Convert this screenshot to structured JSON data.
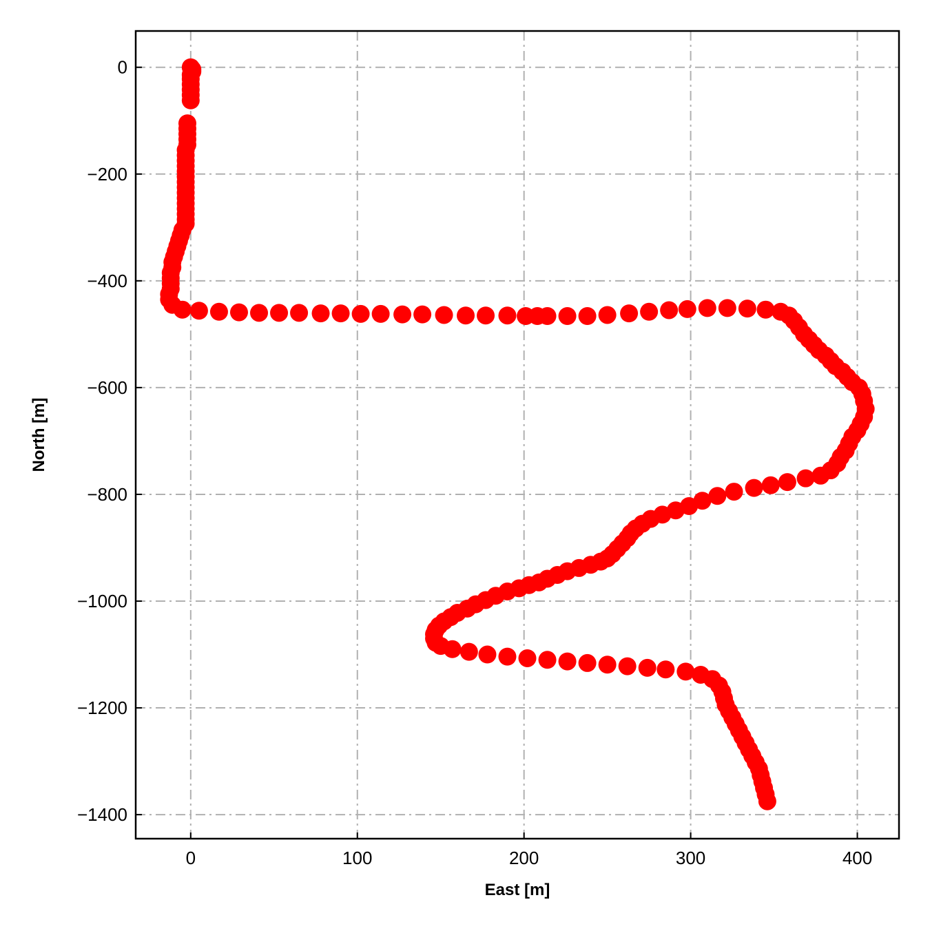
{
  "chart_data": {
    "type": "scatter",
    "title": "",
    "xlabel": "East [m]",
    "ylabel": "North [m]",
    "xlim": [
      -33,
      425
    ],
    "ylim": [
      -1445,
      68
    ],
    "xticks": [
      0,
      100,
      200,
      300,
      400
    ],
    "yticks": [
      0,
      -200,
      -400,
      -600,
      -800,
      -1000,
      -1200,
      -1400
    ],
    "xtick_labels": [
      "0",
      "100",
      "200",
      "300",
      "400"
    ],
    "ytick_labels": [
      "0",
      "−200",
      "−400",
      "−600",
      "−800",
      "−1000",
      "−1200",
      "−1400"
    ],
    "grid": true,
    "marker_color": "#ff0000",
    "series": [
      {
        "points": [
          [
            0,
            0
          ],
          [
            1,
            -4
          ],
          [
            1,
            -8
          ],
          [
            0,
            -14
          ],
          [
            0,
            -22
          ],
          [
            0,
            -32
          ],
          [
            0,
            -42
          ],
          [
            0,
            -52
          ],
          [
            0,
            -62
          ],
          [
            -2,
            -105
          ],
          [
            -2,
            -115
          ],
          [
            -2,
            -125
          ],
          [
            -2,
            -135
          ],
          [
            -2,
            -145
          ],
          [
            -3,
            -155
          ],
          [
            -3,
            -165
          ],
          [
            -3,
            -175
          ],
          [
            -3,
            -185
          ],
          [
            -3,
            -195
          ],
          [
            -3,
            -205
          ],
          [
            -3,
            -215
          ],
          [
            -3,
            -225
          ],
          [
            -3,
            -235
          ],
          [
            -3,
            -245
          ],
          [
            -3,
            -255
          ],
          [
            -3,
            -265
          ],
          [
            -3,
            -275
          ],
          [
            -3,
            -285
          ],
          [
            -3,
            -293
          ],
          [
            -5,
            -305
          ],
          [
            -6,
            -315
          ],
          [
            -7,
            -325
          ],
          [
            -8,
            -335
          ],
          [
            -9,
            -345
          ],
          [
            -10,
            -355
          ],
          [
            -11,
            -365
          ],
          [
            -11,
            -375
          ],
          [
            -12,
            -385
          ],
          [
            -12,
            -395
          ],
          [
            -12,
            -405
          ],
          [
            -12,
            -415
          ],
          [
            -13,
            -425
          ],
          [
            -13,
            -435
          ],
          [
            -11,
            -445
          ],
          [
            -5,
            -454
          ],
          [
            5,
            -456
          ],
          [
            17,
            -458
          ],
          [
            29,
            -459
          ],
          [
            41,
            -460
          ],
          [
            53,
            -460
          ],
          [
            65,
            -460
          ],
          [
            78,
            -461
          ],
          [
            90,
            -461
          ],
          [
            102,
            -462
          ],
          [
            114,
            -462
          ],
          [
            127,
            -463
          ],
          [
            139,
            -463
          ],
          [
            152,
            -464
          ],
          [
            165,
            -465
          ],
          [
            177,
            -465
          ],
          [
            190,
            -465
          ],
          [
            201,
            -466
          ],
          [
            208,
            -466
          ],
          [
            214,
            -466
          ],
          [
            226,
            -466
          ],
          [
            238,
            -466
          ],
          [
            250,
            -464
          ],
          [
            263,
            -461
          ],
          [
            275,
            -458
          ],
          [
            287,
            -455
          ],
          [
            298,
            -453
          ],
          [
            310,
            -451
          ],
          [
            322,
            -451
          ],
          [
            334,
            -452
          ],
          [
            345,
            -454
          ],
          [
            354,
            -458
          ],
          [
            359,
            -465
          ],
          [
            362,
            -475
          ],
          [
            365,
            -487
          ],
          [
            368,
            -500
          ],
          [
            371,
            -510
          ],
          [
            374,
            -520
          ],
          [
            377,
            -530
          ],
          [
            381,
            -540
          ],
          [
            384,
            -550
          ],
          [
            387,
            -560
          ],
          [
            391,
            -570
          ],
          [
            394,
            -580
          ],
          [
            397,
            -590
          ],
          [
            401,
            -600
          ],
          [
            403,
            -612
          ],
          [
            404,
            -625
          ],
          [
            405,
            -640
          ],
          [
            404,
            -655
          ],
          [
            402,
            -668
          ],
          [
            400,
            -680
          ],
          [
            397,
            -692
          ],
          [
            395,
            -705
          ],
          [
            393,
            -718
          ],
          [
            390,
            -730
          ],
          [
            388,
            -742
          ],
          [
            384,
            -755
          ],
          [
            378,
            -765
          ],
          [
            369,
            -770
          ],
          [
            358,
            -777
          ],
          [
            348,
            -783
          ],
          [
            338,
            -788
          ],
          [
            326,
            -795
          ],
          [
            316,
            -803
          ],
          [
            307,
            -812
          ],
          [
            299,
            -822
          ],
          [
            291,
            -830
          ],
          [
            283,
            -838
          ],
          [
            276,
            -846
          ],
          [
            271,
            -855
          ],
          [
            267,
            -864
          ],
          [
            264,
            -873
          ],
          [
            262,
            -882
          ],
          [
            259,
            -892
          ],
          [
            256,
            -902
          ],
          [
            253,
            -912
          ],
          [
            250,
            -920
          ],
          [
            246,
            -926
          ],
          [
            240,
            -932
          ],
          [
            233,
            -938
          ],
          [
            226,
            -944
          ],
          [
            220,
            -951
          ],
          [
            214,
            -958
          ],
          [
            209,
            -965
          ],
          [
            203,
            -970
          ],
          [
            197,
            -976
          ],
          [
            190,
            -982
          ],
          [
            183,
            -990
          ],
          [
            177,
            -998
          ],
          [
            171,
            -1006
          ],
          [
            166,
            -1014
          ],
          [
            160,
            -1022
          ],
          [
            156,
            -1030
          ],
          [
            152,
            -1038
          ],
          [
            149,
            -1046
          ],
          [
            147,
            -1054
          ],
          [
            146,
            -1062
          ],
          [
            146,
            -1070
          ],
          [
            147,
            -1078
          ],
          [
            150,
            -1084
          ],
          [
            157,
            -1090
          ],
          [
            167,
            -1095
          ],
          [
            178,
            -1100
          ],
          [
            190,
            -1104
          ],
          [
            202,
            -1107
          ],
          [
            214,
            -1110
          ],
          [
            226,
            -1113
          ],
          [
            238,
            -1116
          ],
          [
            250,
            -1119
          ],
          [
            262,
            -1122
          ],
          [
            274,
            -1125
          ],
          [
            285,
            -1128
          ],
          [
            297,
            -1132
          ],
          [
            306,
            -1138
          ],
          [
            313,
            -1146
          ],
          [
            317,
            -1158
          ],
          [
            319,
            -1170
          ],
          [
            320,
            -1182
          ],
          [
            321,
            -1194
          ],
          [
            323,
            -1206
          ],
          [
            325,
            -1218
          ],
          [
            327,
            -1230
          ],
          [
            329,
            -1242
          ],
          [
            331,
            -1254
          ],
          [
            333,
            -1266
          ],
          [
            335,
            -1278
          ],
          [
            337,
            -1290
          ],
          [
            339,
            -1302
          ],
          [
            341,
            -1314
          ],
          [
            342,
            -1326
          ],
          [
            343,
            -1338
          ],
          [
            344,
            -1350
          ],
          [
            345,
            -1362
          ],
          [
            346,
            -1375
          ]
        ]
      }
    ]
  }
}
